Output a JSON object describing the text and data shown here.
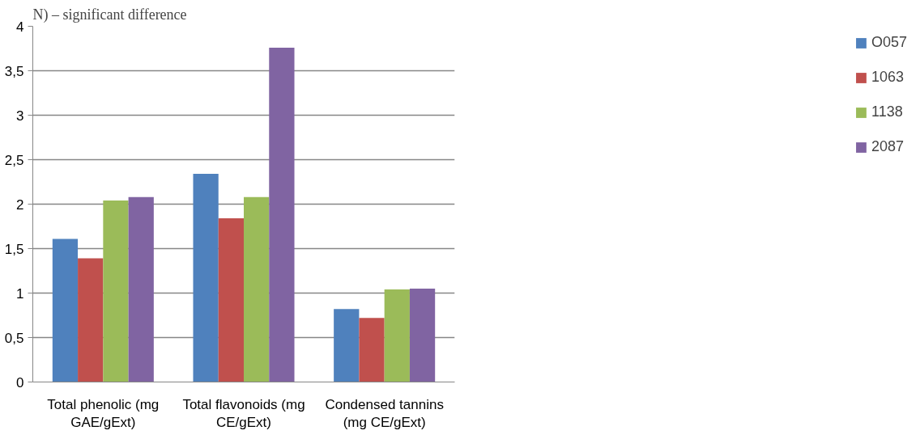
{
  "chart_data": {
    "type": "bar",
    "annotations": [
      "N) – significant difference"
    ],
    "categories": [
      "Total phenolic (mg GAE/gExt)",
      "Total flavonoids (mg CE/gExt)",
      "Condensed tannins (mg CE/gExt)"
    ],
    "series": [
      {
        "name": "O057",
        "color": "#4f81bd",
        "values": [
          1.61,
          2.34,
          0.82
        ]
      },
      {
        "name": "1063",
        "color": "#c0504d",
        "values": [
          1.39,
          1.84,
          0.72
        ]
      },
      {
        "name": "1138",
        "color": "#9bbb59",
        "values": [
          2.04,
          2.08,
          1.04
        ]
      },
      {
        "name": "2087",
        "color": "#8064a2",
        "values": [
          2.08,
          3.76,
          1.05
        ]
      }
    ],
    "ylim": [
      0,
      4
    ],
    "yticks": [
      0,
      {
        "value": 0.5,
        "label": "0,5"
      },
      1,
      {
        "value": 1.5,
        "label": "1,5"
      },
      2,
      {
        "value": 2.5,
        "label": "2,5"
      },
      3,
      {
        "value": 3.5,
        "label": "3,5"
      },
      4
    ],
    "grid": "y",
    "legend": "right"
  }
}
